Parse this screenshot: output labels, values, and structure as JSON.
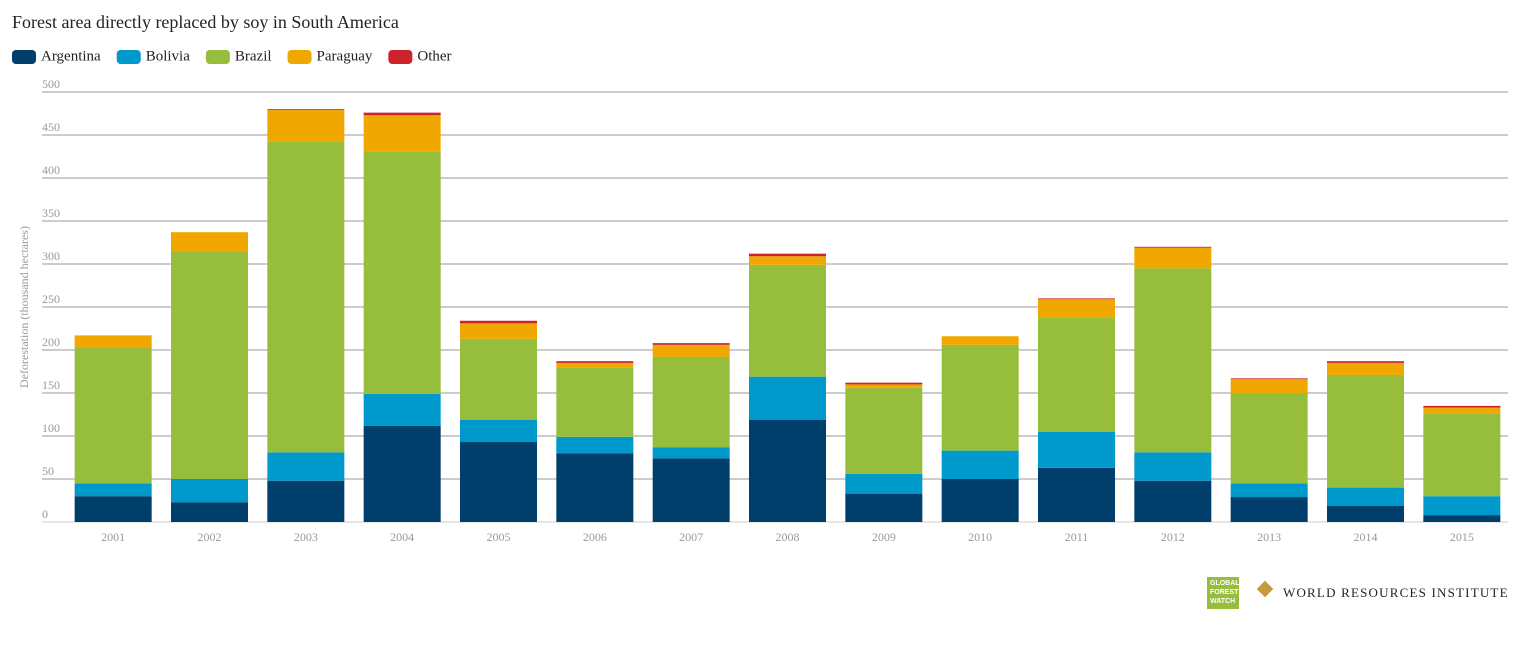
{
  "chart_data": {
    "type": "stacked_bar",
    "title": "Forest area directly replaced by soy in South America",
    "y_label": "Deforestation (thousand hectares)",
    "categories": [
      "2001",
      "2002",
      "2003",
      "2004",
      "2005",
      "2006",
      "2007",
      "2008",
      "2009",
      "2010",
      "2011",
      "2012",
      "2013",
      "2014",
      "2015"
    ],
    "series": [
      {
        "name": "Argentina",
        "color": "#003f6b",
        "values": [
          30,
          23,
          48,
          112,
          93,
          80,
          74,
          119,
          33,
          50,
          63,
          48,
          29,
          19,
          8
        ]
      },
      {
        "name": "Bolivia",
        "color": "#0099cc",
        "values": [
          15,
          27,
          33,
          37,
          26,
          19,
          13,
          50,
          23,
          33,
          42,
          33,
          16,
          21,
          22
        ]
      },
      {
        "name": "Brazil",
        "color": "#96bd3c",
        "values": [
          158,
          264,
          361,
          282,
          94,
          81,
          105,
          130,
          100,
          123,
          133,
          214,
          105,
          131,
          96
        ]
      },
      {
        "name": "Paraguay",
        "color": "#f0a800",
        "values": [
          14,
          23,
          37,
          42,
          18,
          5,
          14,
          10,
          4,
          10,
          21,
          24,
          16,
          14,
          7
        ]
      },
      {
        "name": "Other",
        "color": "#cc2229",
        "values": [
          0,
          0,
          1,
          3,
          3,
          2,
          2,
          3,
          2,
          0,
          1,
          1,
          1,
          2,
          2
        ]
      }
    ],
    "ylim": [
      0,
      500
    ],
    "yticks": [
      0,
      50,
      100,
      150,
      200,
      250,
      300,
      350,
      400,
      450,
      500
    ],
    "grid": true,
    "legend": "top-left",
    "credits": {
      "badge": [
        "GLOBAL",
        "FOREST",
        "WATCH"
      ],
      "org": "WORLD RESOURCES INSTITUTE"
    }
  }
}
